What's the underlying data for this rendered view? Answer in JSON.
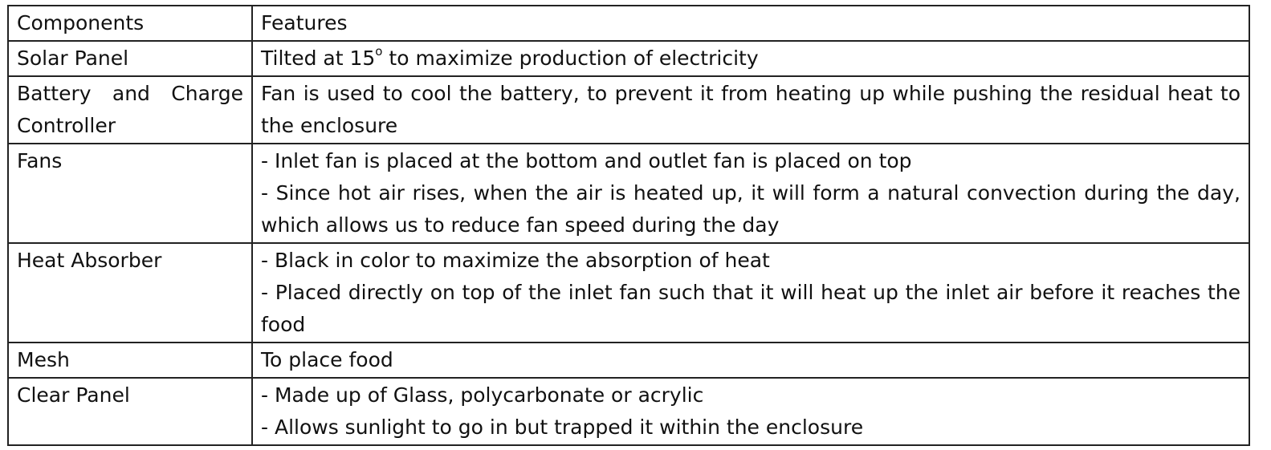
{
  "table": {
    "header": {
      "component": "Components",
      "features": "Features"
    },
    "rows": [
      {
        "component": "Solar Panel",
        "features": [
          "Tilted at 15",
          "o",
          " to maximize production of electricity"
        ]
      },
      {
        "component": "Battery and Charge Controller",
        "features": [
          "Fan is used to cool the battery, to prevent it from heating up while pushing the residual heat to the enclosure"
        ]
      },
      {
        "component": "Fans",
        "features": [
          "- Inlet fan is placed at the bottom and outlet fan is placed on top",
          "- Since hot air rises, when the air is heated up, it will form a natural convection during the day, which allows us to reduce fan speed during the day"
        ]
      },
      {
        "component": "Heat Absorber",
        "features": [
          "- Black in color to maximize the absorption of heat",
          "- Placed directly on top of the inlet fan such that it will heat up the inlet air before it reaches the food"
        ]
      },
      {
        "component": "Mesh",
        "features": [
          "To place food"
        ]
      },
      {
        "component": "Clear Panel",
        "features": [
          "- Made up of Glass, polycarbonate or acrylic",
          "- Allows sunlight to go in but trapped it within the enclosure"
        ]
      }
    ]
  }
}
